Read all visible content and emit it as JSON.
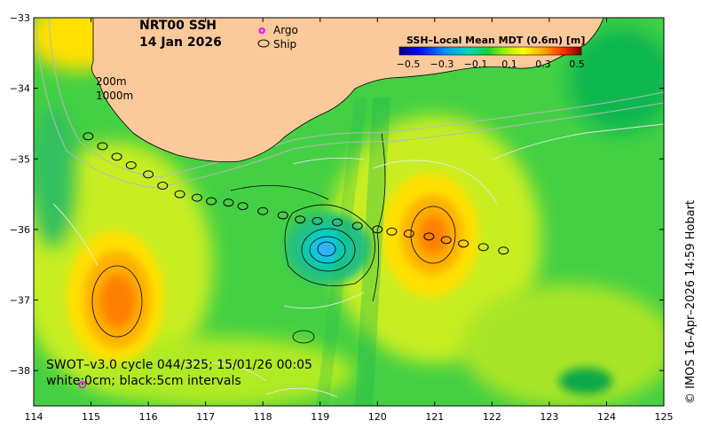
{
  "title": {
    "product": "NRT00 SSH",
    "date": "14 Jan 2026"
  },
  "legend": {
    "argo_symbol": "o",
    "argo_label": "Argo",
    "ship_label": "Ship",
    "argo_color": "#ff00ff"
  },
  "depth_labels": [
    "200m",
    "1000m"
  ],
  "colorbar": {
    "title": "SSH–Local Mean MDT (0.6m) [m]",
    "ticks": [
      "−0.5",
      "−0.3",
      "−0.1",
      "0.1",
      "0.3",
      "0.5"
    ],
    "colors": [
      "#00007f",
      "#0000ff",
      "#0080ff",
      "#00e0e0",
      "#00c070",
      "#20e020",
      "#b0f000",
      "#ffff00",
      "#ffb000",
      "#ff6000",
      "#ff0000",
      "#800000"
    ]
  },
  "axes": {
    "lon_ticks": [
      "114",
      "115",
      "116",
      "117",
      "118",
      "119",
      "120",
      "121",
      "122",
      "123",
      "124",
      "125"
    ],
    "lat_ticks": [
      "−33",
      "−34",
      "−35",
      "−36",
      "−37",
      "−38"
    ],
    "lon_range": [
      114,
      125
    ],
    "lat_range": [
      -38.5,
      -33
    ]
  },
  "annotation": {
    "line1": "SWOT–v3.0 cycle 044/325; 15/01/26 00:05",
    "line2": "white:0cm; black:5cm intervals"
  },
  "credit": "© IMOS 16–Apr–2026 14:59 Hobart",
  "colors": {
    "land": "#fcc99a",
    "ocean_base": "#44d044"
  },
  "ship_track": [
    [
      114.95,
      -34.68
    ],
    [
      115.2,
      -34.82
    ],
    [
      115.45,
      -34.97
    ],
    [
      115.7,
      -35.09
    ],
    [
      116.0,
      -35.22
    ],
    [
      116.25,
      -35.38
    ],
    [
      116.55,
      -35.5
    ],
    [
      116.85,
      -35.55
    ],
    [
      117.1,
      -35.6
    ],
    [
      117.4,
      -35.62
    ],
    [
      117.65,
      -35.67
    ],
    [
      118.0,
      -35.74
    ],
    [
      118.35,
      -35.8
    ],
    [
      118.65,
      -35.86
    ],
    [
      118.95,
      -35.88
    ],
    [
      119.3,
      -35.9
    ],
    [
      119.65,
      -35.95
    ],
    [
      120.0,
      -36.0
    ],
    [
      120.25,
      -36.03
    ],
    [
      120.55,
      -36.06
    ],
    [
      120.9,
      -36.1
    ],
    [
      121.2,
      -36.15
    ],
    [
      121.5,
      -36.2
    ],
    [
      121.85,
      -36.25
    ],
    [
      122.2,
      -36.3
    ]
  ],
  "argo_floats": [
    [
      114.85,
      -38.2
    ]
  ]
}
